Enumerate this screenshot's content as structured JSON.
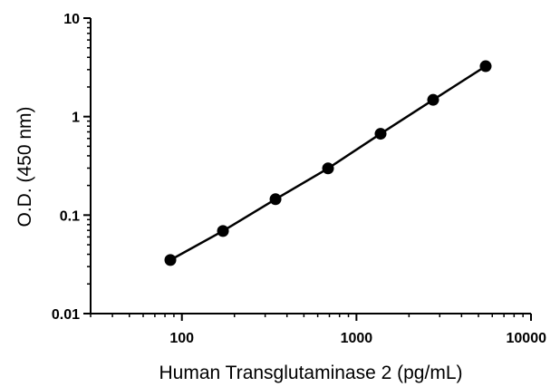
{
  "chart_data": {
    "type": "scatter",
    "title": "",
    "xlabel": "Human Transglutaminase 2  (pg/mL)",
    "ylabel": "O.D. (450 nm)",
    "xscale": "log",
    "yscale": "log",
    "xlim": [
      30,
      10000
    ],
    "ylim": [
      0.01,
      10
    ],
    "x_ticks": [
      {
        "value": 100,
        "label": "100"
      },
      {
        "value": 1000,
        "label": "1000"
      },
      {
        "value": 10000,
        "label": "10000"
      }
    ],
    "y_ticks": [
      {
        "value": 10,
        "label": "10"
      },
      {
        "value": 1,
        "label": "1"
      },
      {
        "value": 0.1,
        "label": "0.1"
      },
      {
        "value": 0.01,
        "label": "0.01"
      }
    ],
    "grid": false,
    "series": [
      {
        "x": [
          85.9,
          171.9,
          343.8,
          687.5,
          1375,
          2750,
          5500
        ],
        "y": [
          0.035,
          0.069,
          0.145,
          0.298,
          0.67,
          1.48,
          3.25
        ]
      }
    ],
    "fit_line": true
  }
}
